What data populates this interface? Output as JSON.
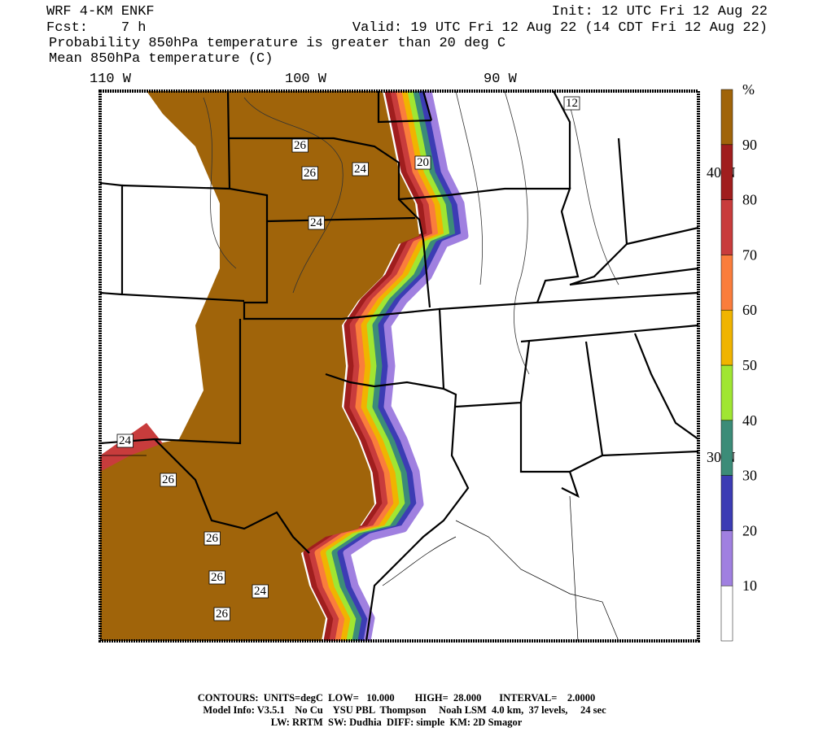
{
  "header": {
    "model": "WRF 4-KM ENKF",
    "forecast": "Fcst:    7 h",
    "init": "Init: 12 UTC Fri 12 Aug 22",
    "valid": "Valid: 19 UTC Fri 12 Aug 22 (14 CDT Fri 12 Aug 22)",
    "field": "Probability 850hPa temperature is greater than 20 deg C",
    "contour_field": "Mean 850hPa temperature (C)"
  },
  "map": {
    "lon_labels": [
      "110 W",
      "100 W",
      "90 W"
    ],
    "lat_labels": [
      "40 N",
      "30 N"
    ],
    "contour_labels": [
      "12",
      "20",
      "26",
      "26",
      "24",
      "24",
      "24",
      "26",
      "26",
      "26",
      "24",
      "26"
    ]
  },
  "colorbar": {
    "unit": "%",
    "colors": [
      "#ffffff",
      "#a080e0",
      "#3c3cb4",
      "#3c8c78",
      "#a0e632",
      "#f0b400",
      "#fa7d3c",
      "#c83c3c",
      "#a01e1e",
      "#a0640a"
    ],
    "labels": [
      10,
      20,
      30,
      40,
      50,
      60,
      70,
      80,
      90
    ]
  },
  "footer": [
    "CONTOURS:  UNITS=degC  LOW=   10.000        HIGH=  28.000       INTERVAL=    2.0000",
    "Model Info: V3.5.1    No Cu    YSU PBL  Thompson     Noah LSM  4.0 km,  37 levels,     24 sec",
    "LW: RRTM  SW: Dudhia  DIFF: simple  KM: 2D Smagor"
  ]
}
